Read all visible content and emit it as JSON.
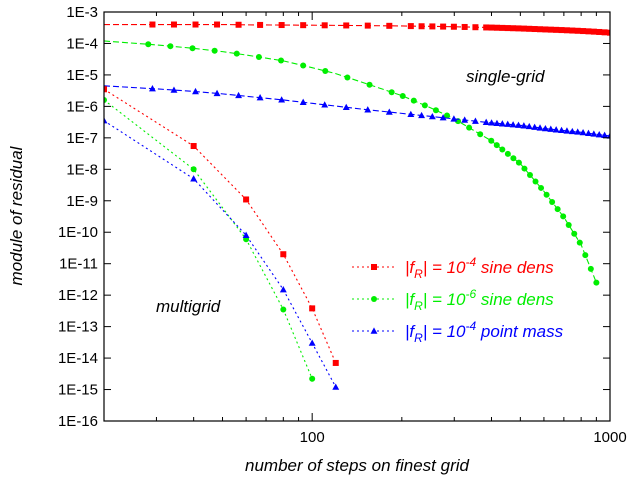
{
  "chart_data": {
    "type": "line",
    "title": "",
    "xlabel": "number of steps on finest grid",
    "ylabel": "module of residual",
    "xscale": "log",
    "yscale": "log",
    "xlim": [
      20,
      1000
    ],
    "ylim": [
      1e-16,
      0.001
    ],
    "x_ticks": [
      {
        "value": 100,
        "label": "100"
      },
      {
        "value": 1000,
        "label": "1000"
      }
    ],
    "y_ticks": [
      {
        "value": 0.001,
        "label": "1E-3"
      },
      {
        "value": 0.0001,
        "label": "1E-4"
      },
      {
        "value": 1e-05,
        "label": "1E-5"
      },
      {
        "value": 1e-06,
        "label": "1E-6"
      },
      {
        "value": 1e-07,
        "label": "1E-7"
      },
      {
        "value": 1e-08,
        "label": "1E-8"
      },
      {
        "value": 1e-09,
        "label": "1E-9"
      },
      {
        "value": 1e-10,
        "label": "1E-10"
      },
      {
        "value": 1e-11,
        "label": "1E-11"
      },
      {
        "value": 1e-12,
        "label": "1E-12"
      },
      {
        "value": 1e-13,
        "label": "1E-13"
      },
      {
        "value": 1e-14,
        "label": "1E-14"
      },
      {
        "value": 1e-15,
        "label": "1E-15"
      },
      {
        "value": 1e-16,
        "label": "1E-16"
      }
    ],
    "grid": false,
    "legend_position": "center-right",
    "annotations": [
      {
        "text": "single-grid",
        "x": 440,
        "y": 1.5e-05
      },
      {
        "text": "multigrid",
        "x": 35,
        "y": 1e-12
      }
    ],
    "series": [
      {
        "legend_text": "|f_R| = 10^-4 sine dens",
        "legend_parts": [
          "|f",
          "R",
          "| = 10",
          "-4",
          " sine dens"
        ],
        "group": "single-grid",
        "color": "#ff0000",
        "marker": "square",
        "line_style": "dashed",
        "x": [
          20,
          30,
          40,
          50,
          60,
          80,
          100,
          150,
          200,
          300,
          400,
          500,
          600,
          700,
          800,
          900,
          1000
        ],
        "y": [
          0.0004,
          0.0004,
          0.0004,
          0.0004,
          0.00039,
          0.000385,
          0.00038,
          0.00037,
          0.00036,
          0.00034,
          0.00032,
          0.0003,
          0.00028,
          0.000265,
          0.00025,
          0.000235,
          0.00022
        ]
      },
      {
        "legend_text": "|f_R| = 10^-6 sine dens",
        "legend_parts": [
          "|f",
          "R",
          "| = 10",
          "-6",
          " sine dens"
        ],
        "group": "single-grid",
        "color": "#00ee00",
        "marker": "circle",
        "line_style": "dashed",
        "x": [
          20,
          30,
          40,
          50,
          60,
          80,
          100,
          120,
          150,
          200,
          250,
          300,
          400,
          500,
          600,
          700,
          800,
          900
        ],
        "y": [
          0.00012,
          9e-05,
          7e-05,
          5.5e-05,
          4.3e-05,
          2.8e-05,
          1.7e-05,
          1.1e-05,
          5.5e-06,
          2.2e-06,
          9e-07,
          4e-07,
          8e-08,
          1.5e-08,
          2e-09,
          3e-10,
          4e-11,
          2.5e-12
        ]
      },
      {
        "legend_text": "|f_R| = 10^-4 point mass",
        "legend_parts": [
          "|f",
          "R",
          "| = 10",
          "-4",
          " point mass"
        ],
        "group": "single-grid",
        "color": "#0000ff",
        "marker": "triangle",
        "line_style": "dashed",
        "x": [
          20,
          30,
          40,
          50,
          60,
          80,
          100,
          150,
          200,
          300,
          400,
          500,
          600,
          700,
          800,
          900,
          1000
        ],
        "y": [
          4.5e-06,
          3.6e-06,
          3e-06,
          2.5e-06,
          2.1e-06,
          1.6e-06,
          1.25e-06,
          8e-07,
          6e-07,
          4e-07,
          3e-07,
          2.5e-07,
          2e-07,
          1.7e-07,
          1.5e-07,
          1.3e-07,
          1.15e-07
        ]
      },
      {
        "legend_text": "",
        "group": "multigrid",
        "color": "#ff0000",
        "marker": "square",
        "line_style": "dotted",
        "x": [
          20,
          40,
          60,
          80,
          100,
          120
        ],
        "y": [
          3.5e-06,
          5.5e-08,
          1.1e-09,
          2e-11,
          3.8e-13,
          7e-15
        ]
      },
      {
        "legend_text": "",
        "group": "multigrid",
        "color": "#00ee00",
        "marker": "circle",
        "line_style": "dotted",
        "x": [
          20,
          40,
          60,
          80,
          100
        ],
        "y": [
          1.6e-06,
          1e-08,
          6e-11,
          3.5e-13,
          2.2e-15
        ]
      },
      {
        "legend_text": "",
        "group": "multigrid",
        "color": "#0000ff",
        "marker": "triangle",
        "line_style": "dotted",
        "x": [
          20,
          40,
          60,
          80,
          100,
          120
        ],
        "y": [
          3.5e-07,
          5e-09,
          8e-11,
          1.5e-12,
          3e-14,
          1.2e-15
        ]
      }
    ]
  }
}
